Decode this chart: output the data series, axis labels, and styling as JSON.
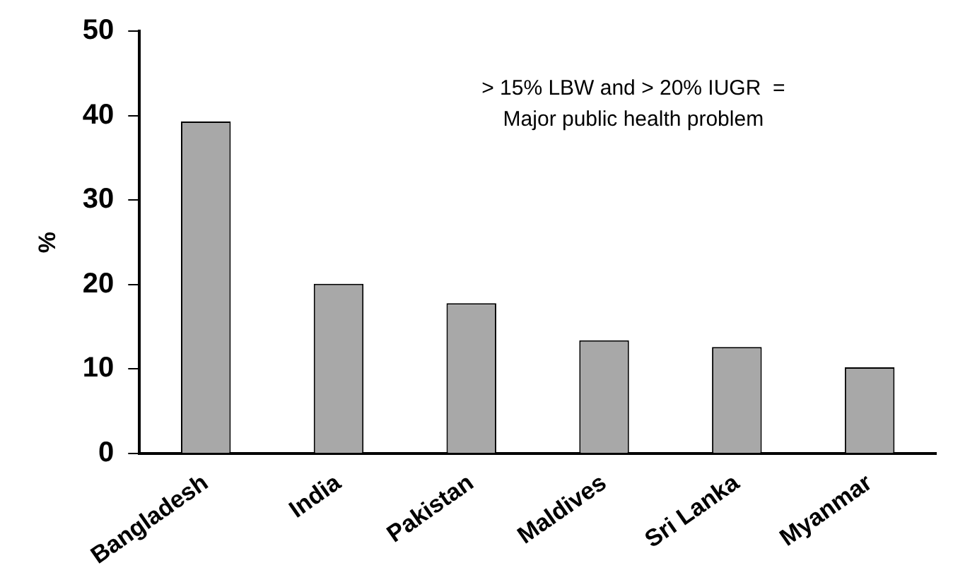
{
  "chart_data": {
    "type": "bar",
    "ylabel": "%",
    "categories": [
      "Bangladesh",
      "India",
      "Pakistan",
      "Maldives",
      "Sri Lanka",
      "Myanmar"
    ],
    "values": [
      39.3,
      20.1,
      17.8,
      13.4,
      12.6,
      10.2
    ],
    "color": "#a8a8a8",
    "ylim": [
      0,
      50
    ],
    "yticks": [
      0,
      10,
      20,
      30,
      40,
      50
    ],
    "grid": false,
    "legend": false,
    "annotations": [
      "> 15% LBW and > 20% IUGR  =\nMajor public health problem"
    ]
  }
}
